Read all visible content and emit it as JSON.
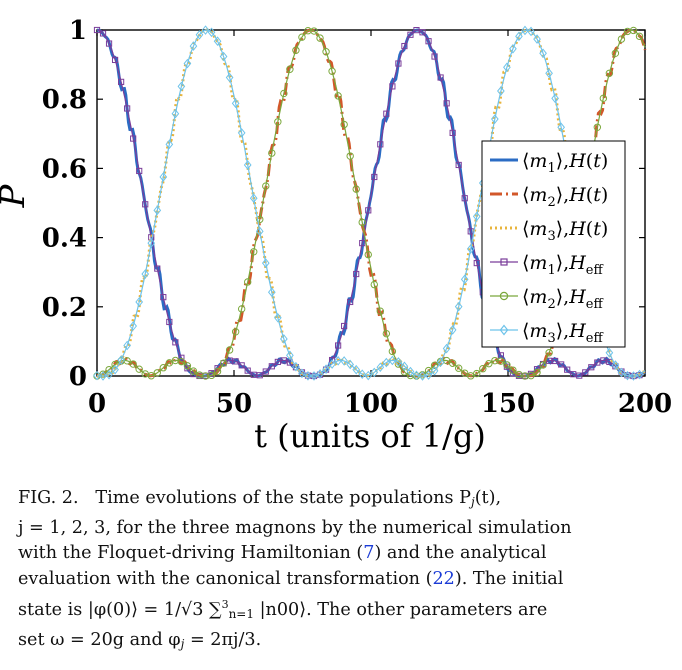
{
  "chart_data": {
    "type": "line",
    "xlabel": "t (units of 1/g)",
    "ylabel": "P",
    "xlim": [
      0,
      200
    ],
    "ylim": [
      0,
      1
    ],
    "xticks": [
      "0",
      "50",
      "100",
      "150",
      "200"
    ],
    "yticks": [
      "0",
      "0.2",
      "0.4",
      "0.6",
      "0.8",
      "1"
    ],
    "grid": false,
    "legend_placement": "right",
    "series": [
      {
        "name": "⟨m1⟩,H(t)",
        "color": "#2b6cc4",
        "style": "solid",
        "marker": "none",
        "magnon": 1,
        "x": [
          0,
          40,
          78,
          117,
          155,
          195,
          200
        ],
        "y": [
          1.0,
          0.0,
          0.0,
          1.0,
          0.0,
          0.0,
          0.0
        ]
      },
      {
        "name": "⟨m2⟩,H(t)",
        "color": "#d2572a",
        "style": "dashdot",
        "marker": "none",
        "magnon": 2,
        "x": [
          0,
          40,
          78,
          117,
          155,
          195,
          200
        ],
        "y": [
          0.0,
          0.0,
          1.0,
          0.0,
          0.0,
          1.0,
          0.88
        ]
      },
      {
        "name": "⟨m3⟩,H(t)",
        "color": "#e8b43c",
        "style": "dotted",
        "marker": "none",
        "magnon": 3,
        "x": [
          0,
          40,
          78,
          117,
          155,
          195,
          200
        ],
        "y": [
          0.0,
          1.0,
          0.0,
          0.0,
          1.0,
          0.0,
          0.02
        ]
      },
      {
        "name": "⟨m1⟩,Heff",
        "color": "#7a3d9a",
        "style": "solid",
        "marker": "square",
        "magnon": 1,
        "x": [
          0,
          40,
          78,
          117,
          155,
          195,
          200
        ],
        "y": [
          1.0,
          0.0,
          0.0,
          1.0,
          0.0,
          0.0,
          0.0
        ]
      },
      {
        "name": "⟨m2⟩,Heff",
        "color": "#7ba83c",
        "style": "solid",
        "marker": "circle",
        "magnon": 2,
        "x": [
          0,
          40,
          78,
          117,
          155,
          195,
          200
        ],
        "y": [
          0.0,
          0.0,
          1.0,
          0.0,
          0.0,
          1.0,
          0.88
        ]
      },
      {
        "name": "⟨m3⟩,Heff",
        "color": "#6ec3ea",
        "style": "solid",
        "marker": "diamond",
        "magnon": 3,
        "x": [
          0,
          40,
          78,
          117,
          155,
          195,
          200
        ],
        "y": [
          0.0,
          1.0,
          0.0,
          0.0,
          1.0,
          0.0,
          0.02
        ]
      }
    ]
  },
  "legend": [
    {
      "label": "⟨m1⟩,H(t)"
    },
    {
      "label": "⟨m2⟩,H(t)"
    },
    {
      "label": "⟨m3⟩,H(t)"
    },
    {
      "label": "⟨m1⟩,Heff"
    },
    {
      "label": "⟨m2⟩,Heff"
    },
    {
      "label": "⟨m3⟩,Heff"
    }
  ],
  "caption": {
    "fig_label": "FIG. 2.",
    "line1": "Time evolutions of the state populations P",
    "line1_sub": "j",
    "line1_end": "(t),",
    "line2": "j = 1, 2, 3, for the three magnons by the numerical simulation",
    "line3_a": "with the Floquet-driving Hamiltonian (",
    "ref1": "7",
    "line3_b": ") and the analytical",
    "line4_a": "evaluation with the canonical transformation (",
    "ref2": "22",
    "line4_b": "). The initial",
    "line5": "state is |φ(0)⟩ = 1/√3 ∑",
    "line5_sup": "3",
    "line5_sub": "n=1",
    "line5_b": " |n00⟩. The other parameters are",
    "line6": "set ω = 20g and φ",
    "line6_sub": "j",
    "line6_b": " = 2πj/3."
  }
}
